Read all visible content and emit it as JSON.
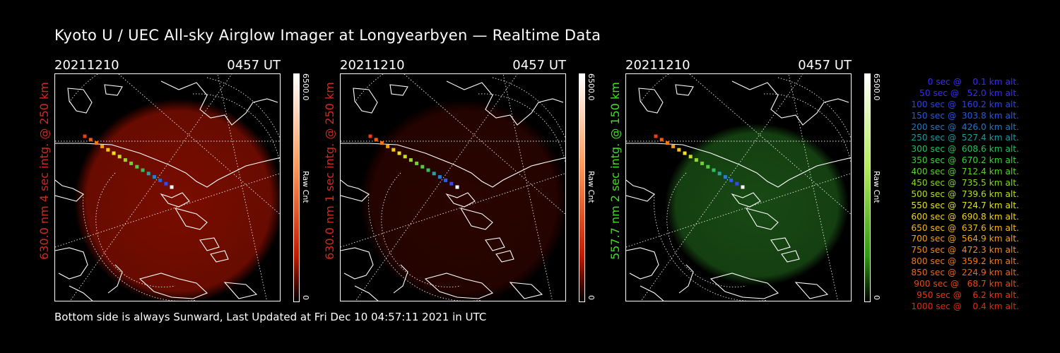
{
  "title": "Kyoto U / UEC All-sky Airglow Imager at Longyearbyen — Realtime Data",
  "footer": "Bottom side is always Sunward, Last Updated at Fri Dec 10 04:57:11 2021 in UTC",
  "panels": [
    {
      "date": "20211210",
      "time": "0457 UT",
      "side_label": "630.0 nm 4 sec intg. @ 250 km",
      "side_color": "#d22b1a",
      "colorbar": {
        "max": "6500.0",
        "unit": "Raw Cnt",
        "min": "0",
        "color": "#ff4a1e"
      },
      "glow_color": "#7a0d00"
    },
    {
      "date": "20211210",
      "time": "0457 UT",
      "side_label": "630.0 nm 1 sec intg. @ 250 km",
      "side_color": "#d22b1a",
      "colorbar": {
        "max": "6500.0",
        "unit": "Raw Cnt",
        "min": "0",
        "color": "#ff4a1e"
      },
      "glow_color": "#2a0400"
    },
    {
      "date": "20211210",
      "time": "0457 UT",
      "side_label": "557.7 nm 2 sec intg. @ 150 km",
      "side_color": "#3fe020",
      "colorbar": {
        "max": "6500.0",
        "unit": "Raw Cnt",
        "min": "0",
        "color": "#5bd21a"
      },
      "glow_color": "#184a14"
    }
  ],
  "legend": [
    {
      "text": "   0 sec @    0.1 km alt.",
      "color": "#3a2cf5"
    },
    {
      "text": "  50 sec @   52.0 km alt.",
      "color": "#3a2cf5"
    },
    {
      "text": " 100 sec @  160.2 km alt.",
      "color": "#2b40f0"
    },
    {
      "text": " 150 sec @  303.8 km alt.",
      "color": "#2458e8"
    },
    {
      "text": " 200 sec @  426.0 km alt.",
      "color": "#1f78c8"
    },
    {
      "text": " 250 sec @  527.4 km alt.",
      "color": "#1c9aa0"
    },
    {
      "text": " 300 sec @  608.6 km alt.",
      "color": "#22c060"
    },
    {
      "text": " 350 sec @  670.2 km alt.",
      "color": "#39d23c"
    },
    {
      "text": " 400 sec @  712.4 km alt.",
      "color": "#5ad32a"
    },
    {
      "text": " 450 sec @  735.5 km alt.",
      "color": "#86d820"
    },
    {
      "text": " 500 sec @  739.6 km alt.",
      "color": "#b4e018"
    },
    {
      "text": " 550 sec @  724.7 km alt.",
      "color": "#e0e418"
    },
    {
      "text": " 600 sec @  690.8 km alt.",
      "color": "#f2d414"
    },
    {
      "text": " 650 sec @  637.6 km alt.",
      "color": "#f6b814"
    },
    {
      "text": " 700 sec @  564.9 km alt.",
      "color": "#f5a012"
    },
    {
      "text": " 750 sec @  472.3 km alt.",
      "color": "#f28a14"
    },
    {
      "text": " 800 sec @  359.2 km alt.",
      "color": "#ee7a18"
    },
    {
      "text": " 850 sec @  224.9 km alt.",
      "color": "#ea6818"
    },
    {
      "text": " 900 sec @   68.7 km alt.",
      "color": "#e84a18"
    },
    {
      "text": " 950 sec @    6.2 km alt.",
      "color": "#e43a14"
    },
    {
      "text": "1000 sec @    0.4 km alt.",
      "color": "#e02a12"
    }
  ],
  "track_colors": [
    "#f03a14",
    "#f05a16",
    "#f07a18",
    "#f49a14",
    "#f8c414",
    "#f4e014",
    "#c8e018",
    "#98d820",
    "#6ed42a",
    "#4cd03a",
    "#2fc060",
    "#2aa0a0",
    "#2880c8",
    "#2a60e0",
    "#3a46f0",
    "#ffffff"
  ]
}
